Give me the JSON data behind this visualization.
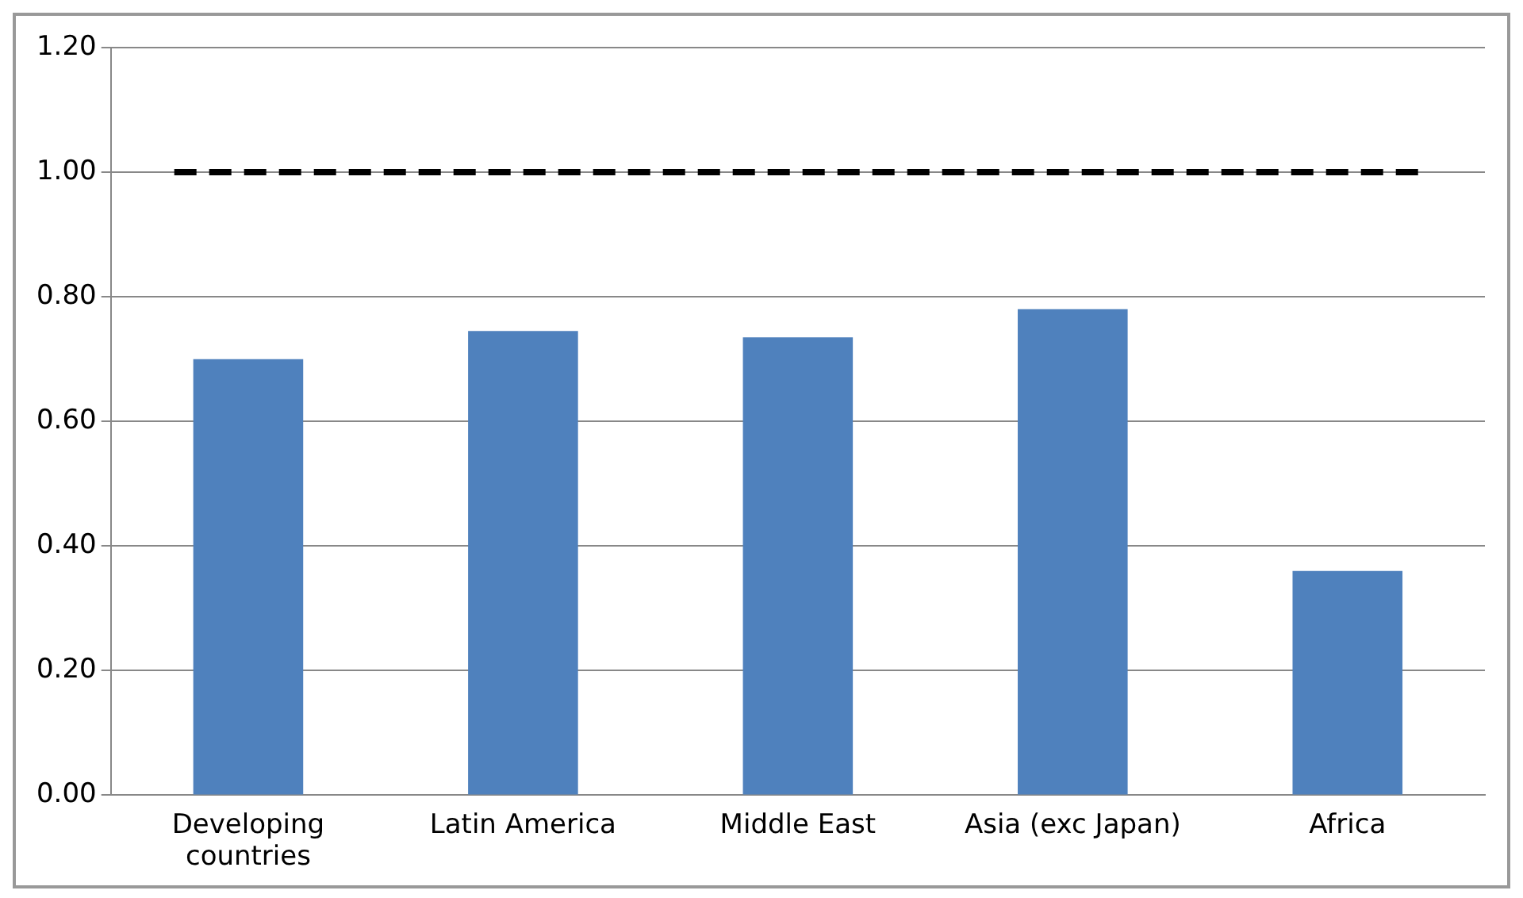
{
  "chart_data": {
    "type": "bar",
    "categories": [
      "Developing countries",
      "Latin America",
      "Middle East",
      "Asia (exc Japan)",
      "Africa"
    ],
    "series": [
      {
        "color": "#4f81bd",
        "values": [
          0.7,
          0.745,
          0.735,
          0.78,
          0.36
        ]
      }
    ],
    "ylim": [
      0,
      1.2
    ],
    "yticks": [
      {
        "value": 0,
        "label": "0.00"
      },
      {
        "value": 0.2,
        "label": "0.20"
      },
      {
        "value": 0.4,
        "label": "0.40"
      },
      {
        "value": 0.6,
        "label": "0.60"
      },
      {
        "value": 0.8,
        "label": "0.80"
      },
      {
        "value": 1,
        "label": "1.00"
      },
      {
        "value": 1.2,
        "label": "1.20"
      }
    ],
    "ref_lines": [
      {
        "axis": "y",
        "value": 1,
        "color": "#000000",
        "line_style": "dashed"
      }
    ],
    "grid": "y",
    "legend": false
  }
}
